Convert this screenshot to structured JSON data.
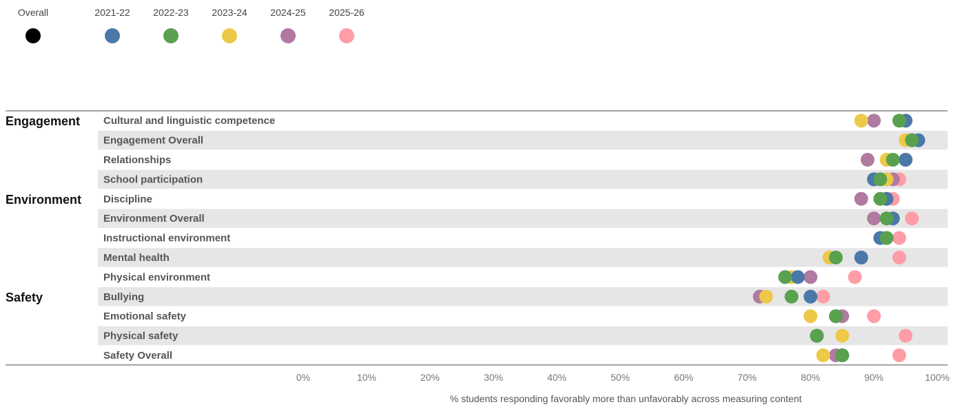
{
  "chart_data": {
    "type": "scatter",
    "title": "",
    "xlabel": "% students responding favorably more than unfavorably across measuring content",
    "ylabel": "",
    "xlim": [
      0,
      100
    ],
    "x_ticks": [
      "0%",
      "10%",
      "20%",
      "30%",
      "40%",
      "50%",
      "60%",
      "70%",
      "80%",
      "90%",
      "100%"
    ],
    "grid": false,
    "legend_position": "top-left",
    "legend": [
      {
        "name": "Overall",
        "color": "#000000"
      },
      {
        "name": "2021-22",
        "color": "#4a78a8"
      },
      {
        "name": "2022-23",
        "color": "#59a14f"
      },
      {
        "name": "2023-24",
        "color": "#edc948"
      },
      {
        "name": "2024-25",
        "color": "#b07aa1"
      },
      {
        "name": "2025-26",
        "color": "#ff9da7"
      }
    ],
    "groups": [
      {
        "label": "Engagement",
        "row_index": 0
      },
      {
        "label": "Environment",
        "row_index": 4
      },
      {
        "label": "Safety",
        "row_index": 9
      }
    ],
    "categories": [
      "Cultural and linguistic competence",
      "Engagement Overall",
      "Relationships",
      "School participation",
      "Discipline",
      "Environment Overall",
      "Instructional environment",
      "Mental health",
      "Physical environment",
      "Bullying",
      "Emotional safety",
      "Physical safety",
      "Safety Overall"
    ],
    "series": [
      {
        "name": "2025-26",
        "values": [
          94,
          96,
          95,
          94,
          93,
          96,
          94,
          94,
          87,
          82,
          90,
          95,
          94
        ]
      },
      {
        "name": "2024-25",
        "values": [
          90,
          96,
          89,
          93,
          88,
          90,
          92,
          83,
          80,
          72,
          85,
          81,
          84
        ]
      },
      {
        "name": "2023-24",
        "values": [
          88,
          95,
          92,
          92,
          92,
          92,
          92,
          83,
          77,
          73,
          80,
          85,
          82
        ]
      },
      {
        "name": "2021-22",
        "values": [
          95,
          97,
          95,
          90,
          92,
          93,
          91,
          88,
          78,
          80,
          84,
          81,
          85
        ]
      },
      {
        "name": "2022-23",
        "values": [
          94,
          96,
          93,
          91,
          91,
          92,
          92,
          84,
          76,
          77,
          84,
          81,
          85
        ]
      }
    ]
  }
}
